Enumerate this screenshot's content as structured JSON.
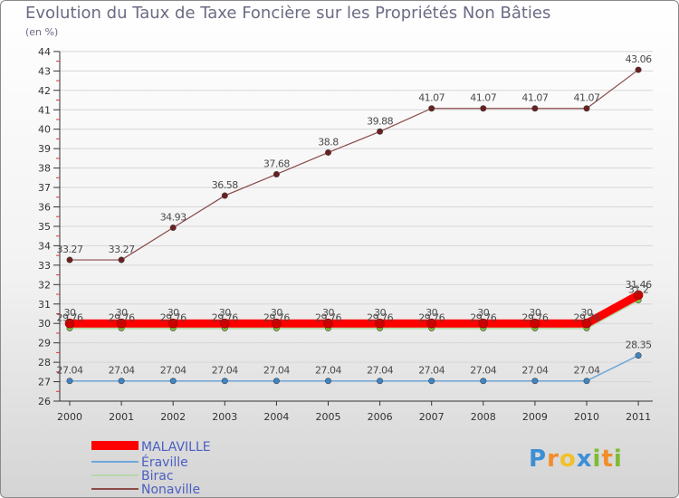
{
  "title": "Evolution du Taux de Taxe Foncière sur les Propriétés Non Bâties",
  "unit": "(en %)",
  "logo": {
    "text": "Proxiti",
    "letters": [
      {
        "ch": "P",
        "color": "#3b8fd6"
      },
      {
        "ch": "r",
        "color": "#f28c28"
      },
      {
        "ch": "o",
        "color": "#f2c028"
      },
      {
        "ch": "x",
        "color": "#3b8fd6"
      },
      {
        "ch": "i",
        "color": "#7dbb32"
      },
      {
        "ch": "t",
        "color": "#f28c28"
      },
      {
        "ch": "i",
        "color": "#7dbb32"
      }
    ]
  },
  "chart_data": {
    "type": "line",
    "title": "Evolution du Taux de Taxe Foncière sur les Propriétés Non Bâties",
    "ylabel": "(en %)",
    "xlabel": "",
    "categories": [
      "2000",
      "2001",
      "2002",
      "2003",
      "2004",
      "2005",
      "2006",
      "2007",
      "2008",
      "2009",
      "2010",
      "2011"
    ],
    "ylim": [
      26,
      44
    ],
    "yticks": [
      26,
      27,
      28,
      29,
      30,
      31,
      32,
      33,
      34,
      35,
      36,
      37,
      38,
      39,
      40,
      41,
      42,
      43,
      44
    ],
    "grid": "horizontal",
    "legend_position": "bottom-left",
    "series": [
      {
        "name": "MALAVILLE",
        "color": "#ff0000",
        "width": 9,
        "marker_fill": "#cc0000",
        "values": [
          30,
          30,
          30,
          30,
          30,
          30,
          30,
          30,
          30,
          30,
          30,
          31.46
        ],
        "labels": [
          "30",
          "30",
          "30",
          "30",
          "30",
          "30",
          "30",
          "30",
          "30",
          "30",
          "30",
          "31.46"
        ]
      },
      {
        "name": "Éraville",
        "color": "#6fa8dc",
        "width": 1.5,
        "marker_fill": "#3d85c6",
        "values": [
          27.04,
          27.04,
          27.04,
          27.04,
          27.04,
          27.04,
          27.04,
          27.04,
          27.04,
          27.04,
          27.04,
          28.35
        ],
        "labels": [
          "27.04",
          "27.04",
          "27.04",
          "27.04",
          "27.04",
          "27.04",
          "27.04",
          "27.04",
          "27.04",
          "27.04",
          "27.04",
          "28.35"
        ]
      },
      {
        "name": "Birac",
        "color": "#b6d7a8",
        "width": 2.5,
        "marker_fill": "#7dc242",
        "values": [
          29.76,
          29.76,
          29.76,
          29.76,
          29.76,
          29.76,
          29.76,
          29.76,
          29.76,
          29.76,
          29.76,
          31.2
        ],
        "labels": [
          "29.76",
          "29.76",
          "29.76",
          "29.76",
          "29.76",
          "29.76",
          "29.76",
          "29.76",
          "29.76",
          "29.76",
          "29.76",
          "31.2"
        ]
      },
      {
        "name": "Nonaville",
        "color": "#8b4a4a",
        "width": 1.2,
        "marker_fill": "#6b1f1f",
        "values": [
          33.27,
          33.27,
          34.93,
          36.58,
          37.68,
          38.8,
          39.88,
          41.07,
          41.07,
          41.07,
          41.07,
          43.06
        ],
        "labels": [
          "33.27",
          "33.27",
          "34.93",
          "36.58",
          "37.68",
          "38.8",
          "39.88",
          "41.07",
          "41.07",
          "41.07",
          "41.07",
          "43.06"
        ]
      }
    ]
  }
}
